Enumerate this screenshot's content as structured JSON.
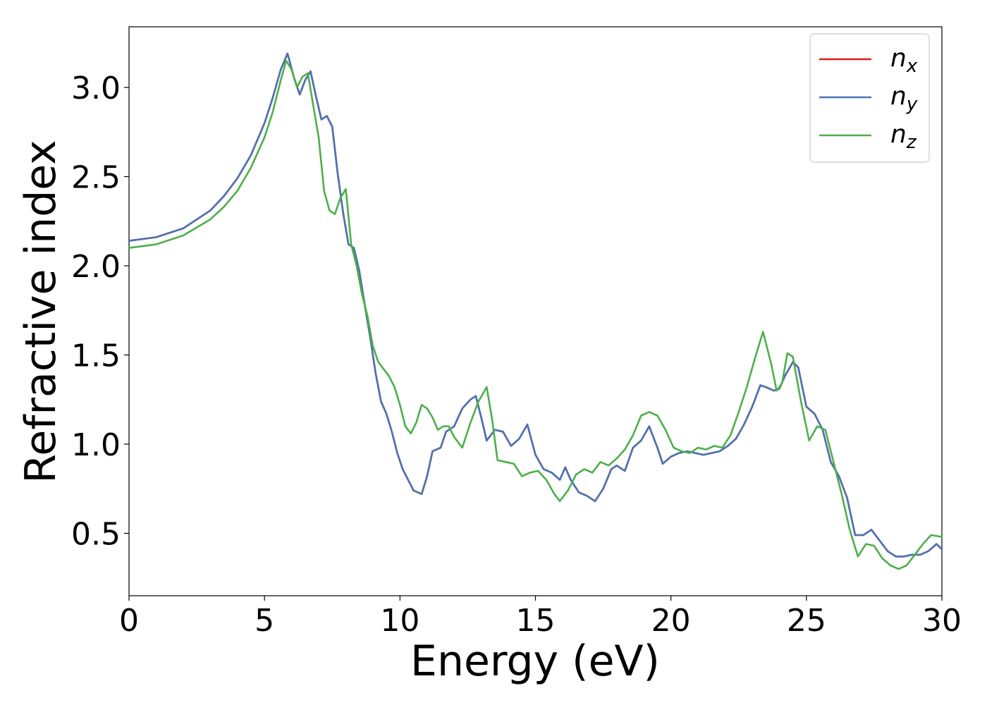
{
  "chart_data": {
    "type": "line",
    "xlabel": "Energy (eV)",
    "ylabel": "Refractive index",
    "xlim": [
      0,
      30
    ],
    "ylim": [
      0.15,
      3.34
    ],
    "xticks": [
      "0",
      "5",
      "10",
      "15",
      "20",
      "25",
      "30"
    ],
    "yticks": [
      "0.5",
      "1.0",
      "1.5",
      "2.0",
      "2.5",
      "3.0"
    ],
    "grid": false,
    "legend_position": "top-right",
    "series": [
      {
        "name": "n",
        "sub": "x",
        "color": "#e41a1c",
        "x": [
          0,
          1,
          2,
          3,
          3.5,
          4,
          4.5,
          5,
          5.3,
          5.6,
          5.85,
          6.1,
          6.3,
          6.5,
          6.7,
          6.9,
          7.1,
          7.3,
          7.5,
          7.7,
          7.9,
          8.1,
          8.3,
          8.5,
          8.7,
          8.9,
          9.1,
          9.3,
          9.5,
          9.7,
          9.9,
          10.1,
          10.3,
          10.5,
          10.8,
          11.0,
          11.2,
          11.5,
          11.7,
          12.0,
          12.3,
          12.6,
          12.8,
          13.0,
          13.2,
          13.5,
          13.8,
          14.1,
          14.4,
          14.7,
          15.0,
          15.3,
          15.6,
          15.9,
          16.1,
          16.3,
          16.6,
          16.9,
          17.2,
          17.5,
          17.8,
          18.0,
          18.3,
          18.6,
          18.9,
          19.2,
          19.5,
          19.7,
          20.0,
          20.3,
          20.6,
          20.9,
          21.2,
          21.5,
          21.8,
          22.1,
          22.4,
          22.7,
          23.0,
          23.3,
          23.5,
          23.8,
          24.0,
          24.2,
          24.5,
          24.7,
          25.0,
          25.3,
          25.6,
          25.9,
          26.2,
          26.5,
          26.8,
          27.1,
          27.4,
          27.7,
          28.0,
          28.3,
          28.6,
          28.9,
          29.2,
          29.5,
          29.8,
          30.0
        ],
        "y": [
          2.14,
          2.16,
          2.21,
          2.31,
          2.39,
          2.49,
          2.62,
          2.8,
          2.94,
          3.1,
          3.19,
          3.05,
          2.96,
          3.04,
          3.09,
          2.95,
          2.82,
          2.84,
          2.78,
          2.52,
          2.3,
          2.12,
          2.1,
          1.97,
          1.78,
          1.6,
          1.4,
          1.24,
          1.17,
          1.07,
          0.95,
          0.86,
          0.8,
          0.74,
          0.72,
          0.82,
          0.96,
          0.98,
          1.07,
          1.1,
          1.2,
          1.25,
          1.27,
          1.15,
          1.02,
          1.08,
          1.07,
          0.99,
          1.03,
          1.11,
          0.94,
          0.86,
          0.84,
          0.8,
          0.87,
          0.8,
          0.73,
          0.71,
          0.68,
          0.75,
          0.86,
          0.88,
          0.85,
          0.98,
          1.02,
          1.1,
          0.98,
          0.89,
          0.93,
          0.95,
          0.96,
          0.95,
          0.94,
          0.95,
          0.96,
          0.99,
          1.03,
          1.11,
          1.21,
          1.33,
          1.32,
          1.3,
          1.31,
          1.38,
          1.46,
          1.43,
          1.21,
          1.17,
          1.08,
          0.9,
          0.82,
          0.7,
          0.49,
          0.49,
          0.52,
          0.46,
          0.4,
          0.37,
          0.37,
          0.38,
          0.38,
          0.4,
          0.44,
          0.41
        ]
      },
      {
        "name": "n",
        "sub": "y",
        "color": "#4a74b4",
        "x": [
          0,
          1,
          2,
          3,
          3.5,
          4,
          4.5,
          5,
          5.3,
          5.6,
          5.85,
          6.1,
          6.3,
          6.5,
          6.7,
          6.9,
          7.1,
          7.3,
          7.5,
          7.7,
          7.9,
          8.1,
          8.3,
          8.5,
          8.7,
          8.9,
          9.1,
          9.3,
          9.5,
          9.7,
          9.9,
          10.1,
          10.3,
          10.5,
          10.8,
          11.0,
          11.2,
          11.5,
          11.7,
          12.0,
          12.3,
          12.6,
          12.8,
          13.0,
          13.2,
          13.5,
          13.8,
          14.1,
          14.4,
          14.7,
          15.0,
          15.3,
          15.6,
          15.9,
          16.1,
          16.3,
          16.6,
          16.9,
          17.2,
          17.5,
          17.8,
          18.0,
          18.3,
          18.6,
          18.9,
          19.2,
          19.5,
          19.7,
          20.0,
          20.3,
          20.6,
          20.9,
          21.2,
          21.5,
          21.8,
          22.1,
          22.4,
          22.7,
          23.0,
          23.3,
          23.5,
          23.8,
          24.0,
          24.2,
          24.5,
          24.7,
          25.0,
          25.3,
          25.6,
          25.9,
          26.2,
          26.5,
          26.8,
          27.1,
          27.4,
          27.7,
          28.0,
          28.3,
          28.6,
          28.9,
          29.2,
          29.5,
          29.8,
          30.0
        ],
        "y": [
          2.14,
          2.16,
          2.21,
          2.31,
          2.39,
          2.49,
          2.62,
          2.8,
          2.94,
          3.1,
          3.19,
          3.05,
          2.96,
          3.04,
          3.09,
          2.95,
          2.82,
          2.84,
          2.78,
          2.52,
          2.3,
          2.12,
          2.1,
          1.97,
          1.78,
          1.6,
          1.4,
          1.24,
          1.17,
          1.07,
          0.95,
          0.86,
          0.8,
          0.74,
          0.72,
          0.82,
          0.96,
          0.98,
          1.07,
          1.1,
          1.2,
          1.25,
          1.27,
          1.15,
          1.02,
          1.08,
          1.07,
          0.99,
          1.03,
          1.11,
          0.94,
          0.86,
          0.84,
          0.8,
          0.87,
          0.8,
          0.73,
          0.71,
          0.68,
          0.75,
          0.86,
          0.88,
          0.85,
          0.98,
          1.02,
          1.1,
          0.98,
          0.89,
          0.93,
          0.95,
          0.96,
          0.95,
          0.94,
          0.95,
          0.96,
          0.99,
          1.03,
          1.11,
          1.21,
          1.33,
          1.32,
          1.3,
          1.31,
          1.38,
          1.46,
          1.43,
          1.21,
          1.17,
          1.08,
          0.9,
          0.82,
          0.7,
          0.49,
          0.49,
          0.52,
          0.46,
          0.4,
          0.37,
          0.37,
          0.38,
          0.38,
          0.4,
          0.44,
          0.41
        ]
      },
      {
        "name": "n",
        "sub": "z",
        "color": "#4daf4a",
        "x": [
          0,
          1,
          2,
          3,
          3.5,
          4,
          4.5,
          5,
          5.3,
          5.6,
          5.8,
          6.0,
          6.2,
          6.4,
          6.6,
          6.8,
          7.0,
          7.2,
          7.4,
          7.6,
          7.8,
          8.0,
          8.2,
          8.4,
          8.6,
          8.8,
          9.0,
          9.2,
          9.4,
          9.6,
          9.8,
          10.0,
          10.2,
          10.4,
          10.6,
          10.8,
          11.0,
          11.2,
          11.4,
          11.6,
          11.8,
          12.0,
          12.3,
          12.6,
          12.9,
          13.2,
          13.4,
          13.6,
          13.9,
          14.2,
          14.5,
          14.8,
          15.1,
          15.4,
          15.7,
          15.9,
          16.2,
          16.5,
          16.8,
          17.1,
          17.4,
          17.7,
          18.0,
          18.3,
          18.6,
          18.9,
          19.2,
          19.5,
          19.8,
          20.1,
          20.4,
          20.7,
          21.0,
          21.3,
          21.6,
          21.9,
          22.2,
          22.5,
          22.8,
          23.1,
          23.4,
          23.7,
          23.9,
          24.1,
          24.3,
          24.5,
          24.8,
          25.1,
          25.4,
          25.7,
          26.0,
          26.3,
          26.6,
          26.9,
          27.2,
          27.5,
          27.8,
          28.1,
          28.4,
          28.7,
          29.0,
          29.3,
          29.6,
          30.0
        ],
        "y": [
          2.1,
          2.12,
          2.17,
          2.26,
          2.33,
          2.42,
          2.55,
          2.72,
          2.86,
          3.04,
          3.15,
          3.1,
          3.0,
          3.06,
          3.08,
          2.9,
          2.72,
          2.42,
          2.31,
          2.29,
          2.38,
          2.43,
          2.12,
          2.0,
          1.84,
          1.72,
          1.55,
          1.46,
          1.42,
          1.38,
          1.32,
          1.22,
          1.1,
          1.06,
          1.12,
          1.22,
          1.2,
          1.15,
          1.08,
          1.1,
          1.1,
          1.04,
          0.98,
          1.12,
          1.24,
          1.32,
          1.14,
          0.91,
          0.9,
          0.89,
          0.82,
          0.84,
          0.85,
          0.8,
          0.72,
          0.68,
          0.74,
          0.83,
          0.86,
          0.84,
          0.9,
          0.88,
          0.92,
          0.97,
          1.05,
          1.16,
          1.18,
          1.16,
          1.08,
          0.98,
          0.96,
          0.95,
          0.98,
          0.97,
          0.99,
          0.98,
          1.05,
          1.18,
          1.32,
          1.48,
          1.63,
          1.45,
          1.3,
          1.34,
          1.51,
          1.49,
          1.24,
          1.02,
          1.1,
          1.08,
          0.9,
          0.72,
          0.52,
          0.37,
          0.44,
          0.43,
          0.36,
          0.32,
          0.3,
          0.32,
          0.38,
          0.44,
          0.49,
          0.48
        ]
      }
    ]
  }
}
